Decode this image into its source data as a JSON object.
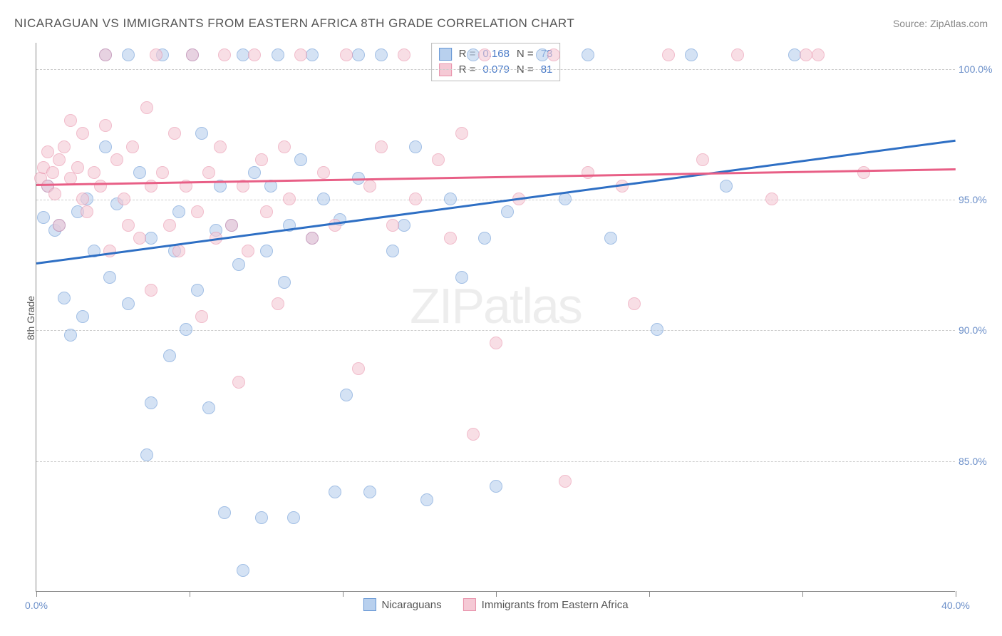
{
  "title": "NICARAGUAN VS IMMIGRANTS FROM EASTERN AFRICA 8TH GRADE CORRELATION CHART",
  "source": "Source: ZipAtlas.com",
  "y_axis_label": "8th Grade",
  "watermark_bold": "ZIP",
  "watermark_light": "atlas",
  "chart": {
    "type": "scatter",
    "background_color": "#ffffff",
    "grid_color": "#cccccc",
    "axis_color": "#888888",
    "tick_label_color": "#6b8fc9",
    "xlim": [
      0,
      40
    ],
    "ylim": [
      80,
      101
    ],
    "y_ticks": [
      85,
      90,
      95,
      100
    ],
    "y_tick_labels": [
      "85.0%",
      "90.0%",
      "95.0%",
      "100.0%"
    ],
    "x_tick_positions": [
      0,
      6.67,
      13.33,
      20,
      26.67,
      33.33,
      40
    ],
    "x_tick_labels": [
      "0.0%",
      "",
      "",
      "",
      "",
      "",
      "40.0%"
    ],
    "marker_size": 18,
    "marker_opacity": 0.6
  },
  "series": [
    {
      "name": "Nicaraguans",
      "fill_color": "#b8d0ee",
      "stroke_color": "#6596d4",
      "line_color": "#2e6fc4",
      "r_value": "0.168",
      "n_value": "73",
      "trend": {
        "x1": 0,
        "y1": 92.6,
        "x2": 40,
        "y2": 97.3
      },
      "points": [
        [
          0.3,
          94.3
        ],
        [
          0.5,
          95.5
        ],
        [
          0.8,
          93.8
        ],
        [
          1.0,
          94.0
        ],
        [
          1.2,
          91.2
        ],
        [
          1.5,
          89.8
        ],
        [
          1.8,
          94.5
        ],
        [
          2.0,
          90.5
        ],
        [
          2.2,
          95.0
        ],
        [
          2.5,
          93.0
        ],
        [
          3.0,
          100.5
        ],
        [
          3.0,
          97.0
        ],
        [
          3.2,
          92.0
        ],
        [
          3.5,
          94.8
        ],
        [
          4.0,
          100.5
        ],
        [
          4.0,
          91.0
        ],
        [
          4.5,
          96.0
        ],
        [
          4.8,
          85.2
        ],
        [
          5.0,
          93.5
        ],
        [
          5.0,
          87.2
        ],
        [
          5.5,
          100.5
        ],
        [
          5.8,
          89.0
        ],
        [
          6.0,
          93.0
        ],
        [
          6.2,
          94.5
        ],
        [
          6.5,
          90.0
        ],
        [
          6.8,
          100.5
        ],
        [
          7.0,
          91.5
        ],
        [
          7.2,
          97.5
        ],
        [
          7.5,
          87.0
        ],
        [
          7.8,
          93.8
        ],
        [
          8.0,
          95.5
        ],
        [
          8.2,
          83.0
        ],
        [
          8.5,
          94.0
        ],
        [
          8.8,
          92.5
        ],
        [
          9.0,
          80.8
        ],
        [
          9.0,
          100.5
        ],
        [
          9.5,
          96.0
        ],
        [
          9.8,
          82.8
        ],
        [
          10.0,
          93.0
        ],
        [
          10.2,
          95.5
        ],
        [
          10.5,
          100.5
        ],
        [
          10.8,
          91.8
        ],
        [
          11.0,
          94.0
        ],
        [
          11.2,
          82.8
        ],
        [
          11.5,
          96.5
        ],
        [
          12.0,
          100.5
        ],
        [
          12.0,
          93.5
        ],
        [
          12.5,
          95.0
        ],
        [
          13.0,
          83.8
        ],
        [
          13.2,
          94.2
        ],
        [
          13.5,
          87.5
        ],
        [
          14.0,
          100.5
        ],
        [
          14.0,
          95.8
        ],
        [
          14.5,
          83.8
        ],
        [
          15.0,
          100.5
        ],
        [
          15.5,
          93.0
        ],
        [
          16.0,
          94.0
        ],
        [
          16.5,
          97.0
        ],
        [
          17.0,
          83.5
        ],
        [
          18.0,
          95.0
        ],
        [
          18.5,
          92.0
        ],
        [
          19.0,
          100.5
        ],
        [
          19.5,
          93.5
        ],
        [
          20.0,
          84.0
        ],
        [
          20.5,
          94.5
        ],
        [
          22.0,
          100.5
        ],
        [
          23.0,
          95.0
        ],
        [
          24.0,
          100.5
        ],
        [
          25.0,
          93.5
        ],
        [
          27.0,
          90.0
        ],
        [
          28.5,
          100.5
        ],
        [
          30.0,
          95.5
        ],
        [
          33.0,
          100.5
        ]
      ]
    },
    {
      "name": "Immigrants from Eastern Africa",
      "fill_color": "#f5c9d5",
      "stroke_color": "#e890a9",
      "line_color": "#e85f86",
      "r_value": "0.079",
      "n_value": "81",
      "trend": {
        "x1": 0,
        "y1": 95.6,
        "x2": 40,
        "y2": 96.2
      },
      "points": [
        [
          0.2,
          95.8
        ],
        [
          0.3,
          96.2
        ],
        [
          0.5,
          95.5
        ],
        [
          0.5,
          96.8
        ],
        [
          0.7,
          96.0
        ],
        [
          0.8,
          95.2
        ],
        [
          1.0,
          96.5
        ],
        [
          1.0,
          94.0
        ],
        [
          1.2,
          97.0
        ],
        [
          1.5,
          95.8
        ],
        [
          1.5,
          98.0
        ],
        [
          1.8,
          96.2
        ],
        [
          2.0,
          95.0
        ],
        [
          2.0,
          97.5
        ],
        [
          2.2,
          94.5
        ],
        [
          2.5,
          96.0
        ],
        [
          2.8,
          95.5
        ],
        [
          3.0,
          97.8
        ],
        [
          3.0,
          100.5
        ],
        [
          3.2,
          93.0
        ],
        [
          3.5,
          96.5
        ],
        [
          3.8,
          95.0
        ],
        [
          4.0,
          94.0
        ],
        [
          4.2,
          97.0
        ],
        [
          4.5,
          93.5
        ],
        [
          4.8,
          98.5
        ],
        [
          5.0,
          91.5
        ],
        [
          5.0,
          95.5
        ],
        [
          5.2,
          100.5
        ],
        [
          5.5,
          96.0
        ],
        [
          5.8,
          94.0
        ],
        [
          6.0,
          97.5
        ],
        [
          6.2,
          93.0
        ],
        [
          6.5,
          95.5
        ],
        [
          6.8,
          100.5
        ],
        [
          7.0,
          94.5
        ],
        [
          7.2,
          90.5
        ],
        [
          7.5,
          96.0
        ],
        [
          7.8,
          93.5
        ],
        [
          8.0,
          97.0
        ],
        [
          8.2,
          100.5
        ],
        [
          8.5,
          94.0
        ],
        [
          8.8,
          88.0
        ],
        [
          9.0,
          95.5
        ],
        [
          9.2,
          93.0
        ],
        [
          9.5,
          100.5
        ],
        [
          9.8,
          96.5
        ],
        [
          10.0,
          94.5
        ],
        [
          10.5,
          91.0
        ],
        [
          10.8,
          97.0
        ],
        [
          11.0,
          95.0
        ],
        [
          11.5,
          100.5
        ],
        [
          12.0,
          93.5
        ],
        [
          12.5,
          96.0
        ],
        [
          13.0,
          94.0
        ],
        [
          13.5,
          100.5
        ],
        [
          14.0,
          88.5
        ],
        [
          14.5,
          95.5
        ],
        [
          15.0,
          97.0
        ],
        [
          15.5,
          94.0
        ],
        [
          16.0,
          100.5
        ],
        [
          16.5,
          95.0
        ],
        [
          17.5,
          96.5
        ],
        [
          18.0,
          93.5
        ],
        [
          18.5,
          97.5
        ],
        [
          19.0,
          86.0
        ],
        [
          19.5,
          100.5
        ],
        [
          20.0,
          89.5
        ],
        [
          21.0,
          95.0
        ],
        [
          22.5,
          100.5
        ],
        [
          23.0,
          84.2
        ],
        [
          24.0,
          96.0
        ],
        [
          25.5,
          95.5
        ],
        [
          26.0,
          91.0
        ],
        [
          27.5,
          100.5
        ],
        [
          29.0,
          96.5
        ],
        [
          30.5,
          100.5
        ],
        [
          32.0,
          95.0
        ],
        [
          34.0,
          100.5
        ],
        [
          36.0,
          96.0
        ],
        [
          33.5,
          100.5
        ]
      ]
    }
  ],
  "legend": {
    "r_label": "R =",
    "n_label": "N ="
  },
  "bottom_legend": [
    {
      "label": "Nicaraguans",
      "series_idx": 0
    },
    {
      "label": "Immigrants from Eastern Africa",
      "series_idx": 1
    }
  ]
}
